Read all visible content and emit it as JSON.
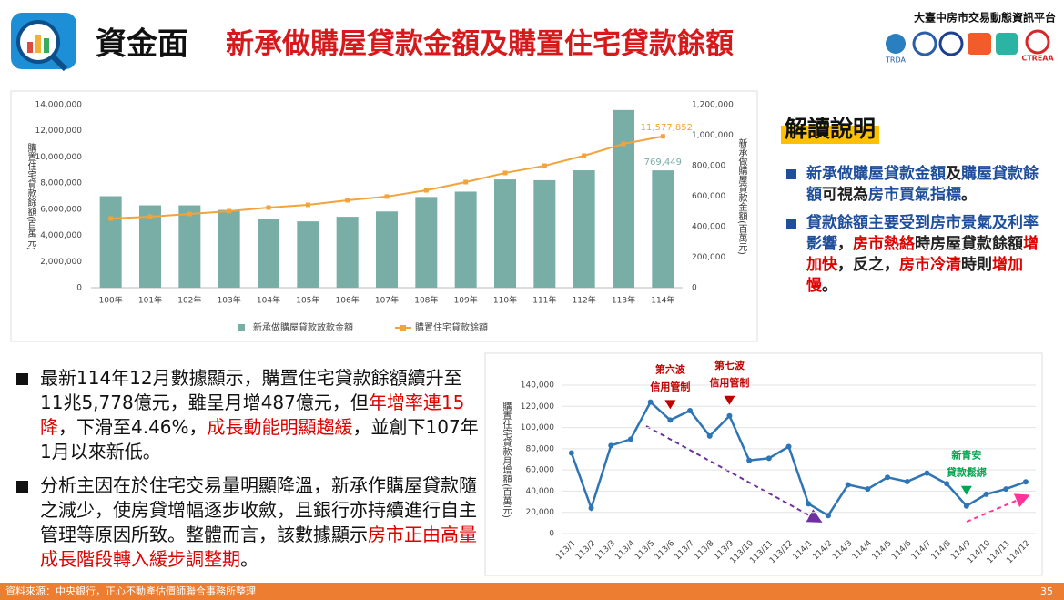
{
  "header": {
    "section": "資金面",
    "title": "新承做購屋貸款金額及購置住宅貸款餘額",
    "platform": "大臺中房市交易動態資訊平台",
    "logos": [
      "TRDA",
      "CTREAA"
    ]
  },
  "chart_data": [
    {
      "type": "combo",
      "categories": [
        "100年",
        "101年",
        "102年",
        "103年",
        "104年",
        "105年",
        "106年",
        "107年",
        "108年",
        "109年",
        "110年",
        "111年",
        "112年",
        "113年",
        "114年"
      ],
      "ylabel": "購置住宅貸款餘額(百萬元)",
      "y2label": "新承做購屋貸款金額(百萬元)",
      "ylim": [
        0,
        14000000
      ],
      "yticks": [
        0,
        {
          "value": 2000000,
          "label": "2,000,000"
        },
        {
          "value": 4000000,
          "label": "4,000,000"
        },
        {
          "value": 6000000,
          "label": "6,000,000"
        },
        {
          "value": 8000000,
          "label": "8,000,000"
        },
        {
          "value": 10000000,
          "label": "10,000,000"
        },
        {
          "value": 12000000,
          "label": "12,000,000"
        },
        {
          "value": 14000000,
          "label": "14,000,000"
        }
      ],
      "y2lim": [
        0,
        1200000
      ],
      "y2ticks": [
        0,
        {
          "value": 200000,
          "label": "200,000"
        },
        {
          "value": 400000,
          "label": "400,000"
        },
        {
          "value": 600000,
          "label": "600,000"
        },
        {
          "value": 800000,
          "label": "800,000"
        },
        {
          "value": 1000000,
          "label": "1,000,000"
        },
        {
          "value": 1200000,
          "label": "1,200,000"
        }
      ],
      "grid": false,
      "series": [
        {
          "name": "新承做購屋貸款放款金額",
          "type": "bar",
          "axis": "y2",
          "color": "#78aea6",
          "values": [
            600000,
            540000,
            540000,
            510000,
            450000,
            435000,
            465000,
            500000,
            595000,
            630000,
            710000,
            705000,
            770000,
            1165000,
            769449
          ],
          "value_labels": [
            null,
            null,
            null,
            null,
            null,
            null,
            null,
            null,
            null,
            null,
            null,
            null,
            null,
            null,
            "769,449"
          ]
        },
        {
          "name": "購置住宅貸款餘額",
          "type": "line",
          "color": "#f2a43a",
          "values": [
            5290000,
            5430000,
            5640000,
            5850000,
            6130000,
            6340000,
            6690000,
            6970000,
            7450000,
            8080000,
            8780000,
            9330000,
            10100000,
            11000000,
            11577852
          ],
          "value_labels": [
            null,
            null,
            null,
            null,
            null,
            null,
            null,
            null,
            null,
            null,
            null,
            null,
            null,
            null,
            "11,577,852"
          ]
        }
      ]
    },
    {
      "type": "line",
      "categories": [
        "113/1",
        "113/2",
        "113/3",
        "113/4",
        "113/5",
        "113/6",
        "113/7",
        "113/8",
        "113/9",
        "113/10",
        "113/11",
        "113/12",
        "114/1",
        "114/2",
        "114/3",
        "114/4",
        "114/5",
        "114/6",
        "114/7",
        "114/8",
        "114/9",
        "114/10",
        "114/11",
        "114/12"
      ],
      "ylabel": "購置住宅貸款月增額(百萬元)",
      "ylim": [
        0,
        140000
      ],
      "yticks": [
        0,
        {
          "value": 20000,
          "label": "20,000"
        },
        {
          "value": 40000,
          "label": "40,000"
        },
        {
          "value": 60000,
          "label": "60,000"
        },
        {
          "value": 80000,
          "label": "80,000"
        },
        {
          "value": 100000,
          "label": "100,000"
        },
        {
          "value": 120000,
          "label": "120,000"
        },
        {
          "value": 140000,
          "label": "140,000"
        }
      ],
      "grid": true,
      "color": "#2e75b6",
      "values": [
        76000,
        24000,
        83000,
        89000,
        124000,
        107000,
        116000,
        92000,
        111000,
        69000,
        71000,
        82000,
        28000,
        17000,
        46000,
        42000,
        53000,
        49000,
        57000,
        47000,
        26000,
        37000,
        42000,
        48700
      ],
      "annotations": [
        {
          "lines": [
            "第六波",
            "信用管制"
          ],
          "category": "113/6",
          "color": "#c00000"
        },
        {
          "lines": [
            "第七波",
            "信用管制"
          ],
          "category": "113/9",
          "color": "#c00000"
        },
        {
          "lines": [
            "新青安",
            "貸款鬆綁"
          ],
          "category": "114/9",
          "color": "#00a650"
        }
      ]
    }
  ],
  "insight": {
    "title": "解讀說明",
    "bullets": [
      [
        {
          "text": "新承做購屋貸款金額",
          "color": "#1f4e9c"
        },
        {
          "text": "及",
          "color": "#222222"
        },
        {
          "text": "購屋貸款餘額",
          "color": "#1f4e9c"
        },
        {
          "text": "可視為",
          "color": "#222222"
        },
        {
          "text": "房市買氣指標",
          "color": "#1f4e9c"
        },
        {
          "text": "。",
          "color": "#222222"
        }
      ],
      [
        {
          "text": "貸款餘額主要受到房市景氣及利率影響",
          "color": "#1f4e9c"
        },
        {
          "text": "，",
          "color": "#222222"
        },
        {
          "text": "房市熱絡",
          "color": "#e00000"
        },
        {
          "text": "時房屋貸款餘額",
          "color": "#222222"
        },
        {
          "text": "增加快",
          "color": "#e00000"
        },
        {
          "text": "，反之，",
          "color": "#222222"
        },
        {
          "text": "房市冷清",
          "color": "#e00000"
        },
        {
          "text": "時則",
          "color": "#222222"
        },
        {
          "text": "增加慢",
          "color": "#e00000"
        },
        {
          "text": "。",
          "color": "#222222"
        }
      ]
    ]
  },
  "summary": {
    "bullets": [
      [
        {
          "text": "最新114年12月數據顯示，購置住宅貸款餘額續升至11兆5,778億元，雖呈月增487億元，但",
          "color": "#111111"
        },
        {
          "text": "年增率連15降",
          "color": "#e00000"
        },
        {
          "text": "，下滑至4.46%，",
          "color": "#111111"
        },
        {
          "text": "成長動能明顯趨緩",
          "color": "#e00000"
        },
        {
          "text": "，並創下107年1月以來新低。",
          "color": "#111111"
        }
      ],
      [
        {
          "text": "分析主因在於住宅交易量明顯降溫，新承作購屋貸款隨之減少，使房貸增幅逐步收斂，且銀行亦持續進行自主管理等原因所致。整體而言，該數據顯示",
          "color": "#111111"
        },
        {
          "text": "房市正由高量成長階段轉入緩步調整期",
          "color": "#e00000"
        },
        {
          "text": "。",
          "color": "#111111"
        }
      ]
    ]
  },
  "footer": {
    "source": "資料來源：中央銀行，正心不動產估價師聯合事務所整理",
    "page": "35"
  }
}
